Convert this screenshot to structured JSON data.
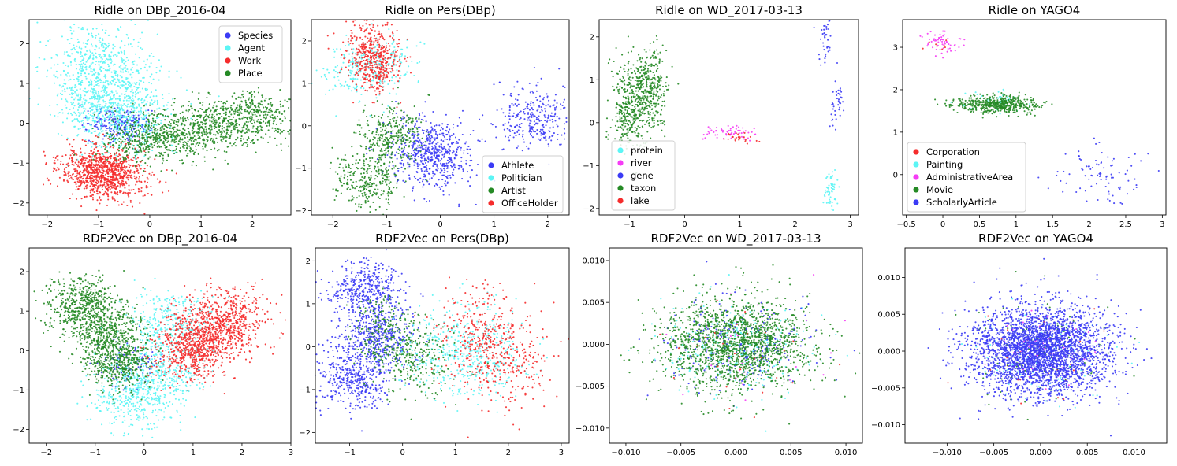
{
  "chart_data": [
    {
      "type": "scatter",
      "title": "Ridle on DBp_2016-04",
      "xlim": [
        -2.35,
        2.75
      ],
      "ylim": [
        -2.3,
        2.6
      ],
      "xticks": [
        -2,
        -1,
        0,
        1,
        2
      ],
      "yticks": [
        -2,
        -1,
        0,
        1,
        2
      ],
      "legend": "top-right",
      "series": [
        {
          "name": "Species",
          "color": "#3b3bf5",
          "values": [
            {
              "x": -0.6,
              "y": 0.0
            },
            {
              "x": -0.4,
              "y": -0.1
            },
            {
              "x": -0.8,
              "y": 0.05
            }
          ],
          "spread": [
            0.25,
            0.2
          ],
          "n": 220
        },
        {
          "name": "Agent",
          "color": "#5cf5f5",
          "values": [
            {
              "x": -0.9,
              "y": 0.6
            },
            {
              "x": -1.0,
              "y": 1.5
            },
            {
              "x": -0.5,
              "y": 0.2
            }
          ],
          "spread": [
            0.5,
            0.5
          ],
          "n": 1300
        },
        {
          "name": "Work",
          "color": "#f52c2c",
          "values": [
            {
              "x": -0.9,
              "y": -1.2
            },
            {
              "x": -0.7,
              "y": -1.4
            },
            {
              "x": -1.1,
              "y": -1.1
            }
          ],
          "spread": [
            0.38,
            0.3
          ],
          "n": 1000
        },
        {
          "name": "Place",
          "color": "#258a25",
          "values": [
            {
              "x": 0.0,
              "y": -0.4
            },
            {
              "x": 1.0,
              "y": -0.15
            },
            {
              "x": 2.0,
              "y": 0.2
            }
          ],
          "spread": [
            0.5,
            0.3
          ],
          "n": 1300
        }
      ]
    },
    {
      "type": "scatter",
      "title": "Ridle on Pers(DBp)",
      "xlim": [
        -2.4,
        2.4
      ],
      "ylim": [
        -2.1,
        2.5
      ],
      "xticks": [
        -2,
        -1,
        0,
        1,
        2
      ],
      "yticks": [
        -2,
        -1,
        0,
        1,
        2
      ],
      "legend": "bottom-right",
      "series": [
        {
          "name": "Athlete",
          "color": "#3b3bf5",
          "values": [
            {
              "x": -0.3,
              "y": -0.5
            },
            {
              "x": 0.0,
              "y": -0.8
            },
            {
              "x": 1.75,
              "y": 0.2
            }
          ],
          "spread": [
            0.35,
            0.4
          ],
          "n": 900
        },
        {
          "name": "Politician",
          "color": "#5cf5f5",
          "values": [
            {
              "x": -1.6,
              "y": 1.3
            },
            {
              "x": -1.0,
              "y": 1.5
            }
          ],
          "spread": [
            0.3,
            0.35
          ],
          "n": 300
        },
        {
          "name": "Artist",
          "color": "#258a25",
          "values": [
            {
              "x": -1.3,
              "y": -1.3
            },
            {
              "x": -0.9,
              "y": -0.2
            }
          ],
          "spread": [
            0.3,
            0.35
          ],
          "n": 600
        },
        {
          "name": "OfficeHolder",
          "color": "#f52c2c",
          "values": [
            {
              "x": -1.2,
              "y": 1.4
            },
            {
              "x": -1.3,
              "y": 1.8
            }
          ],
          "spread": [
            0.25,
            0.35
          ],
          "n": 500
        }
      ]
    },
    {
      "type": "scatter",
      "title": "Ridle on WD_2017-03-13",
      "xlim": [
        -1.55,
        3.15
      ],
      "ylim": [
        -2.15,
        2.4
      ],
      "xticks": [
        -1,
        0,
        1,
        2,
        3
      ],
      "yticks": [
        -2,
        -1,
        0,
        1,
        2
      ],
      "legend": "bottom-left",
      "series": [
        {
          "name": "protein",
          "color": "#5cf5f5",
          "values": [
            {
              "x": 2.65,
              "y": -1.6
            }
          ],
          "spread": [
            0.06,
            0.25
          ],
          "n": 60
        },
        {
          "name": "river",
          "color": "#f53cf5",
          "values": [
            {
              "x": 0.8,
              "y": -0.25
            }
          ],
          "spread": [
            0.25,
            0.1
          ],
          "n": 60
        },
        {
          "name": "gene",
          "color": "#3b3bf5",
          "values": [
            {
              "x": 2.55,
              "y": 1.9
            },
            {
              "x": 2.75,
              "y": 0.6
            }
          ],
          "spread": [
            0.07,
            0.3
          ],
          "n": 80
        },
        {
          "name": "taxon",
          "color": "#258a25",
          "values": [
            {
              "x": -1.0,
              "y": 0.4
            },
            {
              "x": -0.65,
              "y": 0.8
            }
          ],
          "spread": [
            0.17,
            0.5
          ],
          "n": 700
        },
        {
          "name": "lake",
          "color": "#f52c2c",
          "values": [
            {
              "x": 1.0,
              "y": -0.35
            }
          ],
          "spread": [
            0.18,
            0.06
          ],
          "n": 25
        }
      ]
    },
    {
      "type": "scatter",
      "title": "Ridle on YAGO4",
      "xlim": [
        -0.55,
        3.05
      ],
      "ylim": [
        -0.95,
        3.65
      ],
      "xticks": [
        -0.5,
        0.0,
        0.5,
        1.0,
        1.5,
        2.0,
        2.5,
        3.0
      ],
      "yticks": [
        0,
        1,
        2,
        3
      ],
      "legend": "bottom-left",
      "series": [
        {
          "name": "Corporation",
          "color": "#f52c2c",
          "values": [
            {
              "x": 0.0,
              "y": 3.05
            }
          ],
          "spread": [
            0.15,
            0.15
          ],
          "n": 8
        },
        {
          "name": "Painting",
          "color": "#5cf5f5",
          "values": [
            {
              "x": 0.7,
              "y": 1.75
            }
          ],
          "spread": [
            0.2,
            0.15
          ],
          "n": 40
        },
        {
          "name": "AdministrativeArea",
          "color": "#f53cf5",
          "values": [
            {
              "x": 0.0,
              "y": 3.05
            }
          ],
          "spread": [
            0.17,
            0.14
          ],
          "n": 60
        },
        {
          "name": "Movie",
          "color": "#258a25",
          "values": [
            {
              "x": 0.75,
              "y": 1.65
            }
          ],
          "spread": [
            0.28,
            0.1
          ],
          "n": 500
        },
        {
          "name": "ScholarlyArticle",
          "color": "#3b3bf5",
          "values": [
            {
              "x": 2.15,
              "y": 0.0
            }
          ],
          "spread": [
            0.32,
            0.35
          ],
          "n": 90
        }
      ]
    },
    {
      "type": "scatter",
      "title": "RDF2Vec on DBp_2016-04",
      "xlim": [
        -2.35,
        3.0
      ],
      "ylim": [
        -2.35,
        2.6
      ],
      "xticks": [
        -2,
        -1,
        0,
        1,
        2,
        3
      ],
      "yticks": [
        -2,
        -1,
        0,
        1,
        2
      ],
      "legend": "none",
      "series": [
        {
          "name": "Species",
          "color": "#3b3bf5",
          "values": [
            {
              "x": -0.3,
              "y": -0.3
            }
          ],
          "spread": [
            0.3,
            0.3
          ],
          "n": 100
        },
        {
          "name": "Agent",
          "color": "#5cf5f5",
          "values": [
            {
              "x": 0.3,
              "y": -0.6
            },
            {
              "x": 0.5,
              "y": 0.7
            },
            {
              "x": -0.2,
              "y": -1.2
            }
          ],
          "spread": [
            0.45,
            0.4
          ],
          "n": 1000
        },
        {
          "name": "Work",
          "color": "#f52c2c",
          "values": [
            {
              "x": 1.3,
              "y": 0.4
            },
            {
              "x": 1.8,
              "y": 0.8
            },
            {
              "x": 0.9,
              "y": 0.0
            }
          ],
          "spread": [
            0.4,
            0.4
          ],
          "n": 1300
        },
        {
          "name": "Place",
          "color": "#258a25",
          "values": [
            {
              "x": -1.3,
              "y": 1.2
            },
            {
              "x": -0.5,
              "y": -0.3
            },
            {
              "x": -0.8,
              "y": 0.5
            }
          ],
          "spread": [
            0.35,
            0.35
          ],
          "n": 1400
        }
      ]
    },
    {
      "type": "scatter",
      "title": "RDF2Vec on Pers(DBp)",
      "xlim": [
        -1.65,
        3.15
      ],
      "ylim": [
        -2.25,
        2.3
      ],
      "xticks": [
        -1,
        0,
        1,
        2,
        3
      ],
      "yticks": [
        -2,
        -1,
        0,
        1,
        2
      ],
      "legend": "none",
      "series": [
        {
          "name": "Athlete",
          "color": "#3b3bf5",
          "values": [
            {
              "x": -0.7,
              "y": 1.3
            },
            {
              "x": -0.9,
              "y": -0.7
            },
            {
              "x": -0.5,
              "y": 0.2
            }
          ],
          "spread": [
            0.35,
            0.35
          ],
          "n": 1300
        },
        {
          "name": "Politician",
          "color": "#5cf5f5",
          "values": [
            {
              "x": 1.5,
              "y": -0.2
            },
            {
              "x": 0.8,
              "y": 0.0
            }
          ],
          "spread": [
            0.5,
            0.55
          ],
          "n": 500
        },
        {
          "name": "Artist",
          "color": "#258a25",
          "values": [
            {
              "x": -0.3,
              "y": 0.3
            },
            {
              "x": 0.3,
              "y": -0.3
            }
          ],
          "spread": [
            0.35,
            0.45
          ],
          "n": 450
        },
        {
          "name": "OfficeHolder",
          "color": "#f52c2c",
          "values": [
            {
              "x": 1.9,
              "y": -0.3
            },
            {
              "x": 1.5,
              "y": 0.3
            }
          ],
          "spread": [
            0.45,
            0.55
          ],
          "n": 500
        }
      ]
    },
    {
      "type": "scatter",
      "title": "RDF2Vec on WD_2017-03-13",
      "xlim": [
        -0.0115,
        0.0115
      ],
      "ylim": [
        -0.0118,
        0.0115
      ],
      "xticks": [
        -0.01,
        -0.005,
        0.0,
        0.005,
        0.01
      ],
      "yticks": [
        -0.01,
        -0.005,
        0.0,
        0.005,
        0.01
      ],
      "tick_format": "3dp",
      "legend": "none",
      "series": [
        {
          "name": "protein",
          "color": "#5cf5f5",
          "values": [
            {
              "x": 0.0,
              "y": 0.0
            }
          ],
          "spread": [
            0.0034,
            0.0028
          ],
          "n": 260
        },
        {
          "name": "river",
          "color": "#f53cf5",
          "values": [
            {
              "x": 0.0,
              "y": 0.0
            }
          ],
          "spread": [
            0.0034,
            0.0028
          ],
          "n": 30
        },
        {
          "name": "gene",
          "color": "#3b3bf5",
          "values": [
            {
              "x": 0.0,
              "y": 0.0
            }
          ],
          "spread": [
            0.0034,
            0.0028
          ],
          "n": 250
        },
        {
          "name": "taxon",
          "color": "#258a25",
          "values": [
            {
              "x": 0.0,
              "y": 0.0
            }
          ],
          "spread": [
            0.0034,
            0.0028
          ],
          "n": 1700
        },
        {
          "name": "lake",
          "color": "#f52c2c",
          "values": [
            {
              "x": 0.0,
              "y": 0.0
            }
          ],
          "spread": [
            0.0034,
            0.0028
          ],
          "n": 30
        }
      ]
    },
    {
      "type": "scatter",
      "title": "RDF2Vec on YAGO4",
      "xlim": [
        -0.0145,
        0.0135
      ],
      "ylim": [
        -0.0125,
        0.014
      ],
      "xticks": [
        -0.01,
        -0.005,
        0.0,
        0.005,
        0.01
      ],
      "yticks": [
        -0.01,
        -0.005,
        0.0,
        0.005,
        0.01
      ],
      "tick_format": "3dp",
      "legend": "none",
      "series": [
        {
          "name": "Corporation",
          "color": "#f52c2c",
          "values": [
            {
              "x": 0.0,
              "y": 0.0
            }
          ],
          "spread": [
            0.0036,
            0.0031
          ],
          "n": 40
        },
        {
          "name": "Painting",
          "color": "#5cf5f5",
          "values": [
            {
              "x": 0.0,
              "y": 0.0
            }
          ],
          "spread": [
            0.0036,
            0.0031
          ],
          "n": 120
        },
        {
          "name": "AdministrativeArea",
          "color": "#f53cf5",
          "values": [
            {
              "x": 0.0,
              "y": 0.0
            }
          ],
          "spread": [
            0.0025,
            0.0022
          ],
          "n": 90
        },
        {
          "name": "Movie",
          "color": "#258a25",
          "values": [
            {
              "x": 0.0,
              "y": 0.0
            }
          ],
          "spread": [
            0.0036,
            0.0031
          ],
          "n": 120
        },
        {
          "name": "ScholarlyArticle",
          "color": "#3b3bf5",
          "values": [
            {
              "x": 0.0,
              "y": 0.0
            }
          ],
          "spread": [
            0.0036,
            0.0031
          ],
          "n": 3200
        }
      ]
    }
  ]
}
